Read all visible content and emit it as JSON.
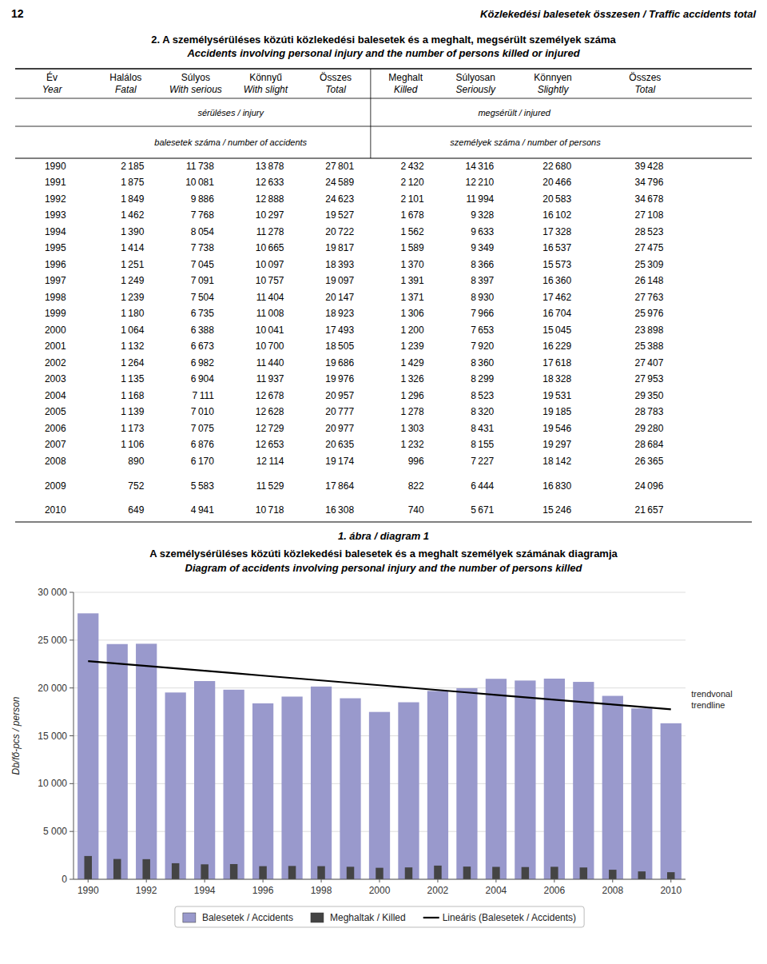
{
  "page": {
    "page_num": "12",
    "page_title": "Közlekedési balesetek összesen / Traffic accidents total",
    "section_title_hu": "2. A személysérüléses közúti közlekedési balesetek és a meghalt,  megsérült személyek száma",
    "section_title_en": "Accidents involving personal injury and the number of persons killed or injured"
  },
  "table": {
    "groups": [
      "sérüléses / injury",
      "megsérült / injured"
    ],
    "sections": [
      "balesetek száma / number of accidents",
      "személyek száma / number of persons"
    ],
    "columns": [
      {
        "header": [
          "Év",
          "Year"
        ],
        "cells": [
          "1990",
          "1991",
          "1992",
          "1993",
          "1994",
          "1995",
          "1996",
          "1997",
          "1998",
          "1999",
          "2000",
          "2001",
          "2002",
          "2003",
          "2004",
          "2005",
          "2006",
          "2007",
          "2008",
          "2009",
          "2010"
        ]
      },
      {
        "header": [
          "Halálos",
          "Fatal"
        ],
        "cells": [
          "2 185",
          "1 875",
          "1 849",
          "1 462",
          "1 390",
          "1 414",
          "1 251",
          "1 249",
          "1 239",
          "1 180",
          "1 064",
          "1 132",
          "1 264",
          "1 135",
          "1 168",
          "1 139",
          "1 173",
          "1 106",
          "890",
          "752",
          "649"
        ]
      },
      {
        "header": [
          "Súlyos",
          "With serious"
        ],
        "cells": [
          "11 738",
          "10 081",
          "9 886",
          "7 768",
          "8 054",
          "7 738",
          "7 045",
          "7 091",
          "7 504",
          "6 735",
          "6 388",
          "6 673",
          "6 982",
          "6 904",
          "7 111",
          "7 010",
          "7 075",
          "6 876",
          "6 170",
          "5 583",
          "4 941"
        ]
      },
      {
        "header": [
          "Könnyű",
          "With slight"
        ],
        "cells": [
          "13 878",
          "12 633",
          "12 888",
          "10 297",
          "11 278",
          "10 665",
          "10 097",
          "10 757",
          "11 404",
          "11 008",
          "10 041",
          "10 700",
          "11 440",
          "11 937",
          "12 678",
          "12 628",
          "12 729",
          "12 653",
          "12 114",
          "11 529",
          "10 718"
        ]
      },
      {
        "header": [
          "Összes",
          "Total"
        ],
        "cells": [
          "27 801",
          "24 589",
          "24 623",
          "19 527",
          "20 722",
          "19 817",
          "18 393",
          "19 097",
          "20 147",
          "18 923",
          "17 493",
          "18 505",
          "19 686",
          "19 976",
          "20 957",
          "20 777",
          "20 977",
          "20 635",
          "19 174",
          "17 864",
          "16 308"
        ]
      },
      {
        "header": [
          "Meghalt",
          "Killed"
        ],
        "cells": [
          "2 432",
          "2 120",
          "2 101",
          "1 678",
          "1 562",
          "1 589",
          "1 370",
          "1 391",
          "1 371",
          "1 306",
          "1 200",
          "1 239",
          "1 429",
          "1 326",
          "1 296",
          "1 278",
          "1 303",
          "1 232",
          "996",
          "822",
          "740"
        ]
      },
      {
        "header": [
          "Súlyosan",
          "Seriously"
        ],
        "cells": [
          "14 316",
          "12 210",
          "11 994",
          "9 328",
          "9 633",
          "9 349",
          "8 366",
          "8 397",
          "8 930",
          "7 966",
          "7 653",
          "7 920",
          "8 360",
          "8 299",
          "8 523",
          "8 320",
          "8 431",
          "8 155",
          "7 227",
          "6 444",
          "5 671"
        ]
      },
      {
        "header": [
          "Könnyen",
          "Slightly"
        ],
        "cells": [
          "22 680",
          "20 466",
          "20 583",
          "16 102",
          "17 328",
          "16 537",
          "15 573",
          "16 360",
          "17 462",
          "16 704",
          "15 045",
          "16 229",
          "17 618",
          "18 328",
          "19 531",
          "19 185",
          "19 546",
          "19 297",
          "18 142",
          "16 830",
          "15 246"
        ]
      },
      {
        "header": [
          "Összes",
          "Total"
        ],
        "cells": [
          "39 428",
          "34 796",
          "34 678",
          "27 108",
          "28 523",
          "27 475",
          "25 309",
          "26 148",
          "27 763",
          "25 976",
          "23 898",
          "25 388",
          "27 407",
          "27 953",
          "29 350",
          "28 783",
          "29 280",
          "28 684",
          "26 365",
          "24 096",
          "21 657"
        ]
      }
    ]
  },
  "chart_data": {
    "type": "bar",
    "title": "1. ábra / diagram 1",
    "subtitle": [
      "A személysérüléses közúti közlekedési balesetek és a meghalt személyek számának diagramja",
      "Diagram of accidents involving personal injury and the number of persons killed"
    ],
    "y_label": "Db/fő-pcs  / person",
    "categories": [
      "1990",
      null,
      "1992",
      null,
      "1994",
      null,
      "1996",
      null,
      "1998",
      null,
      "2000",
      null,
      "2002",
      null,
      "2004",
      null,
      "2006",
      null,
      "2008",
      null,
      "2010"
    ],
    "series": [
      {
        "name": "Balesetek / Accidents",
        "color": "#9999CC",
        "values": [
          27801,
          24589,
          24623,
          19527,
          20722,
          19817,
          18393,
          19097,
          20147,
          18923,
          17493,
          18505,
          19686,
          19976,
          20957,
          20777,
          20977,
          20635,
          19174,
          17864,
          16308
        ]
      },
      {
        "name": "Meghaltak / Killed",
        "color": "#444444",
        "values": [
          2432,
          2120,
          2101,
          1678,
          1562,
          1589,
          1370,
          1391,
          1371,
          1306,
          1200,
          1239,
          1429,
          1326,
          1296,
          1278,
          1303,
          1232,
          996,
          822,
          740
        ]
      },
      {
        "name": "Lineáris (Balesetek / Accidents)",
        "type": "line",
        "color": "#000000",
        "values": [
          22797.078,
          22545.899,
          22294.72,
          22043.54,
          21792.361,
          21541.182,
          21290.003,
          21038.823,
          20787.644,
          20536.465,
          20285.286,
          20034.107,
          19782.927,
          19531.748,
          19280.569,
          19029.39,
          18778.21,
          18527.031,
          18275.852,
          18024.673,
          17773.494
        ]
      }
    ],
    "annotations": [
      {
        "text": "trendvonal\ntrendline"
      }
    ],
    "ylim": [
      0,
      30000
    ],
    "yticks": [
      0,
      {
        "value": 5000,
        "label": "5 000"
      },
      {
        "value": 10000,
        "label": "10 000"
      },
      {
        "value": 15000,
        "label": "15 000"
      },
      {
        "value": 20000,
        "label": "20 000"
      },
      {
        "value": 25000,
        "label": "25 000"
      },
      {
        "value": 30000,
        "label": "30 000"
      }
    ],
    "grid": true,
    "legend": "bottom"
  }
}
